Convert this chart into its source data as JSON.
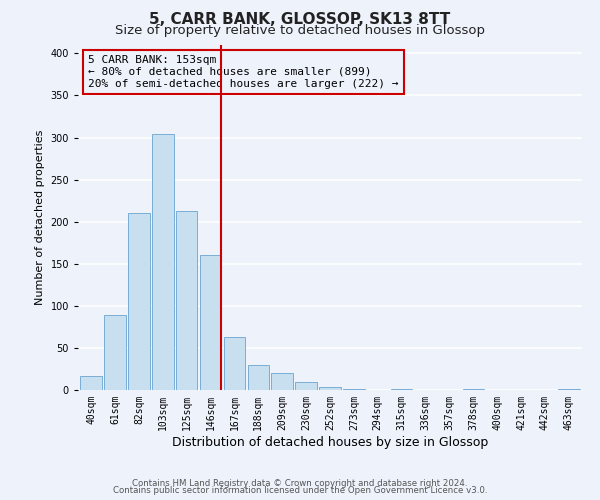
{
  "title": "5, CARR BANK, GLOSSOP, SK13 8TT",
  "subtitle": "Size of property relative to detached houses in Glossop",
  "xlabel": "Distribution of detached houses by size in Glossop",
  "ylabel": "Number of detached properties",
  "bar_labels": [
    "40sqm",
    "61sqm",
    "82sqm",
    "103sqm",
    "125sqm",
    "146sqm",
    "167sqm",
    "188sqm",
    "209sqm",
    "230sqm",
    "252sqm",
    "273sqm",
    "294sqm",
    "315sqm",
    "336sqm",
    "357sqm",
    "378sqm",
    "400sqm",
    "421sqm",
    "442sqm",
    "463sqm"
  ],
  "bar_values": [
    17,
    89,
    210,
    304,
    213,
    160,
    63,
    30,
    20,
    10,
    4,
    1,
    0,
    1,
    0,
    0,
    1,
    0,
    0,
    0,
    1
  ],
  "bar_color": "#c8dff0",
  "bar_edgecolor": "#7aaed6",
  "bg_color": "#edf2fb",
  "grid_color": "#ffffff",
  "vline_x_index": 5.42,
  "vline_color": "#cc0000",
  "annotation_line1": "5 CARR BANK: 153sqm",
  "annotation_line2": "← 80% of detached houses are smaller (899)",
  "annotation_line3": "20% of semi-detached houses are larger (222) →",
  "annotation_box_color": "#cc0000",
  "ylim": [
    0,
    410
  ],
  "yticks": [
    0,
    50,
    100,
    150,
    200,
    250,
    300,
    350,
    400
  ],
  "footnote1": "Contains HM Land Registry data © Crown copyright and database right 2024.",
  "footnote2": "Contains public sector information licensed under the Open Government Licence v3.0.",
  "title_fontsize": 11,
  "subtitle_fontsize": 9.5,
  "xlabel_fontsize": 9,
  "ylabel_fontsize": 8,
  "tick_fontsize": 7
}
